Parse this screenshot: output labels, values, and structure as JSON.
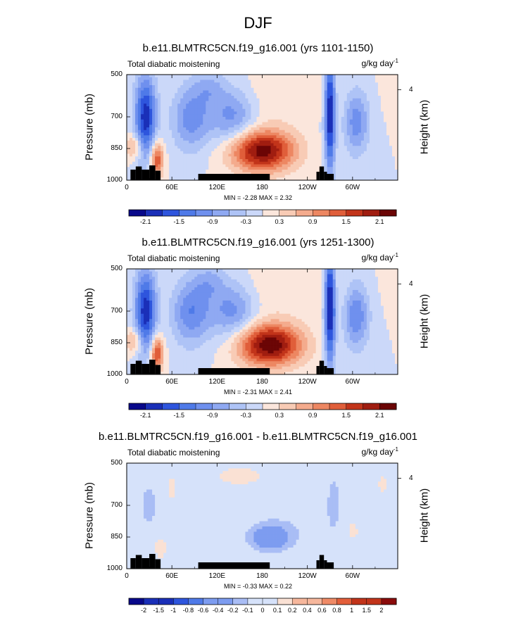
{
  "figure": {
    "title": "DJF"
  },
  "colors": {
    "bar12": [
      "#08088a",
      "#1a2fb8",
      "#2e55dd",
      "#4f7ae8",
      "#7d9cf0",
      "#a9bdf5",
      "#d6e2fa",
      "#fae1d4",
      "#f6b79c",
      "#ef8a66",
      "#e35e3a",
      "#c2341a",
      "#8a0b0b"
    ],
    "bar16": [
      "#08088a",
      "#1a2fb8",
      "#2e55dd",
      "#4f7ae8",
      "#6f90ee",
      "#8fa9f2",
      "#aec3f6",
      "#cbd8f9",
      "#e4ecfb",
      "#fbe6dc",
      "#f8cbb5",
      "#f4ab8d",
      "#ed8762",
      "#e05e3a",
      "#c2341a",
      "#a01d10",
      "#6b0505"
    ],
    "land": "#000000"
  },
  "chart_data": [
    {
      "type": "heatmap",
      "title": "b.e11.BLMTRC5CN.f19_g16.001 (yrs 1101-1150)",
      "left_string": "Total diabatic moistening",
      "units": "g/kg day",
      "units_exp": "-1",
      "ylabel": "Pressure (mb)",
      "y2label": "Height (km)",
      "y_ticks": [
        "500",
        "700",
        "850",
        "1000"
      ],
      "y_ticks_values": [
        500,
        700,
        850,
        1000
      ],
      "y2_ticks": [
        "4"
      ],
      "x_ticks": [
        "0",
        "60E",
        "120E",
        "180",
        "120W",
        "60W"
      ],
      "x_ticks_values": [
        0,
        60,
        120,
        180,
        240,
        300
      ],
      "xlim": [
        0,
        360
      ],
      "ylim": [
        1000,
        500
      ],
      "min": -2.28,
      "max": 2.32,
      "minmax_text": "MIN = -2.28  MAX =  2.32",
      "colorbar_labels": [
        "-2.1",
        "-1.5",
        "-0.9",
        "-0.3",
        "0.3",
        "0.9",
        "1.5",
        "2.1"
      ],
      "colorbar_levels": [
        -2.4,
        -2.1,
        -1.8,
        -1.5,
        -1.2,
        -0.9,
        -0.6,
        -0.3,
        0,
        0.3,
        0.6,
        0.9,
        1.2,
        1.5,
        1.8,
        2.1,
        2.4
      ],
      "field": [
        {
          "lon": 180,
          "p": 860,
          "v": 2.3,
          "slon": 30,
          "sp": 70
        },
        {
          "lon": 25,
          "p": 700,
          "v": -2.0,
          "slon": 10,
          "sp": 140
        },
        {
          "lon": 10,
          "p": 840,
          "v": 0.9,
          "slon": 8,
          "sp": 40
        },
        {
          "lon": 40,
          "p": 900,
          "v": 1.6,
          "slon": 6,
          "sp": 60
        },
        {
          "lon": 85,
          "p": 700,
          "v": -1.1,
          "slon": 18,
          "sp": 110
        },
        {
          "lon": 140,
          "p": 690,
          "v": -1.1,
          "slon": 22,
          "sp": 100
        },
        {
          "lon": 110,
          "p": 560,
          "v": -0.6,
          "slon": 15,
          "sp": 60
        },
        {
          "lon": 270,
          "p": 680,
          "v": -2.2,
          "slon": 5,
          "sp": 200
        },
        {
          "lon": 305,
          "p": 720,
          "v": -1.1,
          "slon": 12,
          "sp": 110
        },
        {
          "lon": 185,
          "p": 600,
          "v": 0.25,
          "slon": 70,
          "sp": 90
        }
      ]
    },
    {
      "type": "heatmap",
      "title": "b.e11.BLMTRC5CN.f19_g16.001 (yrs 1251-1300)",
      "left_string": "Total diabatic moistening",
      "units": "g/kg day",
      "units_exp": "-1",
      "ylabel": "Pressure (mb)",
      "y2label": "Height (km)",
      "y_ticks": [
        "500",
        "700",
        "850",
        "1000"
      ],
      "y_ticks_values": [
        500,
        700,
        850,
        1000
      ],
      "y2_ticks": [
        "4"
      ],
      "x_ticks": [
        "0",
        "60E",
        "120E",
        "180",
        "120W",
        "60W"
      ],
      "x_ticks_values": [
        0,
        60,
        120,
        180,
        240,
        300
      ],
      "xlim": [
        0,
        360
      ],
      "ylim": [
        1000,
        500
      ],
      "min": -2.31,
      "max": 2.41,
      "minmax_text": "MIN = -2.31  MAX =  2.41",
      "colorbar_labels": [
        "-2.1",
        "-1.5",
        "-0.9",
        "-0.3",
        "0.3",
        "0.9",
        "1.5",
        "2.1"
      ],
      "colorbar_levels": [
        -2.4,
        -2.1,
        -1.8,
        -1.5,
        -1.2,
        -0.9,
        -0.6,
        -0.3,
        0,
        0.3,
        0.6,
        0.9,
        1.2,
        1.5,
        1.8,
        2.1,
        2.4
      ],
      "field": [
        {
          "lon": 190,
          "p": 860,
          "v": 2.4,
          "slon": 30,
          "sp": 70
        },
        {
          "lon": 25,
          "p": 700,
          "v": -2.0,
          "slon": 10,
          "sp": 140
        },
        {
          "lon": 10,
          "p": 840,
          "v": 0.9,
          "slon": 8,
          "sp": 40
        },
        {
          "lon": 40,
          "p": 900,
          "v": 1.7,
          "slon": 6,
          "sp": 60
        },
        {
          "lon": 85,
          "p": 700,
          "v": -1.2,
          "slon": 18,
          "sp": 110
        },
        {
          "lon": 140,
          "p": 690,
          "v": -1.1,
          "slon": 22,
          "sp": 100
        },
        {
          "lon": 110,
          "p": 560,
          "v": -0.6,
          "slon": 15,
          "sp": 60
        },
        {
          "lon": 270,
          "p": 680,
          "v": -2.3,
          "slon": 5,
          "sp": 200
        },
        {
          "lon": 305,
          "p": 720,
          "v": -1.2,
          "slon": 12,
          "sp": 110
        },
        {
          "lon": 190,
          "p": 600,
          "v": 0.25,
          "slon": 70,
          "sp": 90
        }
      ]
    },
    {
      "type": "heatmap",
      "title": "b.e11.BLMTRC5CN.f19_g16.001 - b.e11.BLMTRC5CN.f19_g16.001",
      "left_string": "Total diabatic moistening",
      "units": "g/kg day",
      "units_exp": "-1",
      "ylabel": "Pressure (mb)",
      "y2label": "Height (km)",
      "y_ticks": [
        "500",
        "700",
        "850",
        "1000"
      ],
      "y_ticks_values": [
        500,
        700,
        850,
        1000
      ],
      "y2_ticks": [
        "4"
      ],
      "x_ticks": [
        "0",
        "60E",
        "120E",
        "180",
        "120W",
        "60W"
      ],
      "x_ticks_values": [
        0,
        60,
        120,
        180,
        240,
        300
      ],
      "xlim": [
        0,
        360
      ],
      "ylim": [
        1000,
        500
      ],
      "min": -0.33,
      "max": 0.22,
      "minmax_text": "MIN = -0.33  MAX =  0.22",
      "colorbar_labels": [
        "-2",
        "-1.5",
        "-1",
        "-0.8",
        "-0.6",
        "-0.4",
        "-0.2",
        "-0.1",
        "0",
        "0.1",
        "0.2",
        "0.4",
        "0.6",
        "0.8",
        "1",
        "1.5",
        "2"
      ],
      "colorbar_levels": [
        -2.5,
        -2,
        -1.5,
        -1,
        -0.8,
        -0.6,
        -0.4,
        -0.2,
        -0.1,
        0,
        0.1,
        0.2,
        0.4,
        0.6,
        0.8,
        1,
        1.5,
        2,
        2.5
      ],
      "field": [
        {
          "lon": 190,
          "p": 860,
          "v": -0.3,
          "slon": 18,
          "sp": 40
        },
        {
          "lon": 200,
          "p": 820,
          "v": -0.12,
          "slon": 30,
          "sp": 60
        },
        {
          "lon": 30,
          "p": 700,
          "v": -0.15,
          "slon": 10,
          "sp": 80
        },
        {
          "lon": 275,
          "p": 700,
          "v": -0.15,
          "slon": 8,
          "sp": 120
        },
        {
          "lon": 150,
          "p": 560,
          "v": 0.15,
          "slon": 30,
          "sp": 40
        },
        {
          "lon": 60,
          "p": 620,
          "v": 0.12,
          "slon": 6,
          "sp": 80
        },
        {
          "lon": 300,
          "p": 820,
          "v": 0.12,
          "slon": 10,
          "sp": 60
        },
        {
          "lon": 340,
          "p": 600,
          "v": 0.12,
          "slon": 8,
          "sp": 60
        },
        {
          "lon": 45,
          "p": 900,
          "v": 0.2,
          "slon": 6,
          "sp": 40
        }
      ]
    }
  ]
}
